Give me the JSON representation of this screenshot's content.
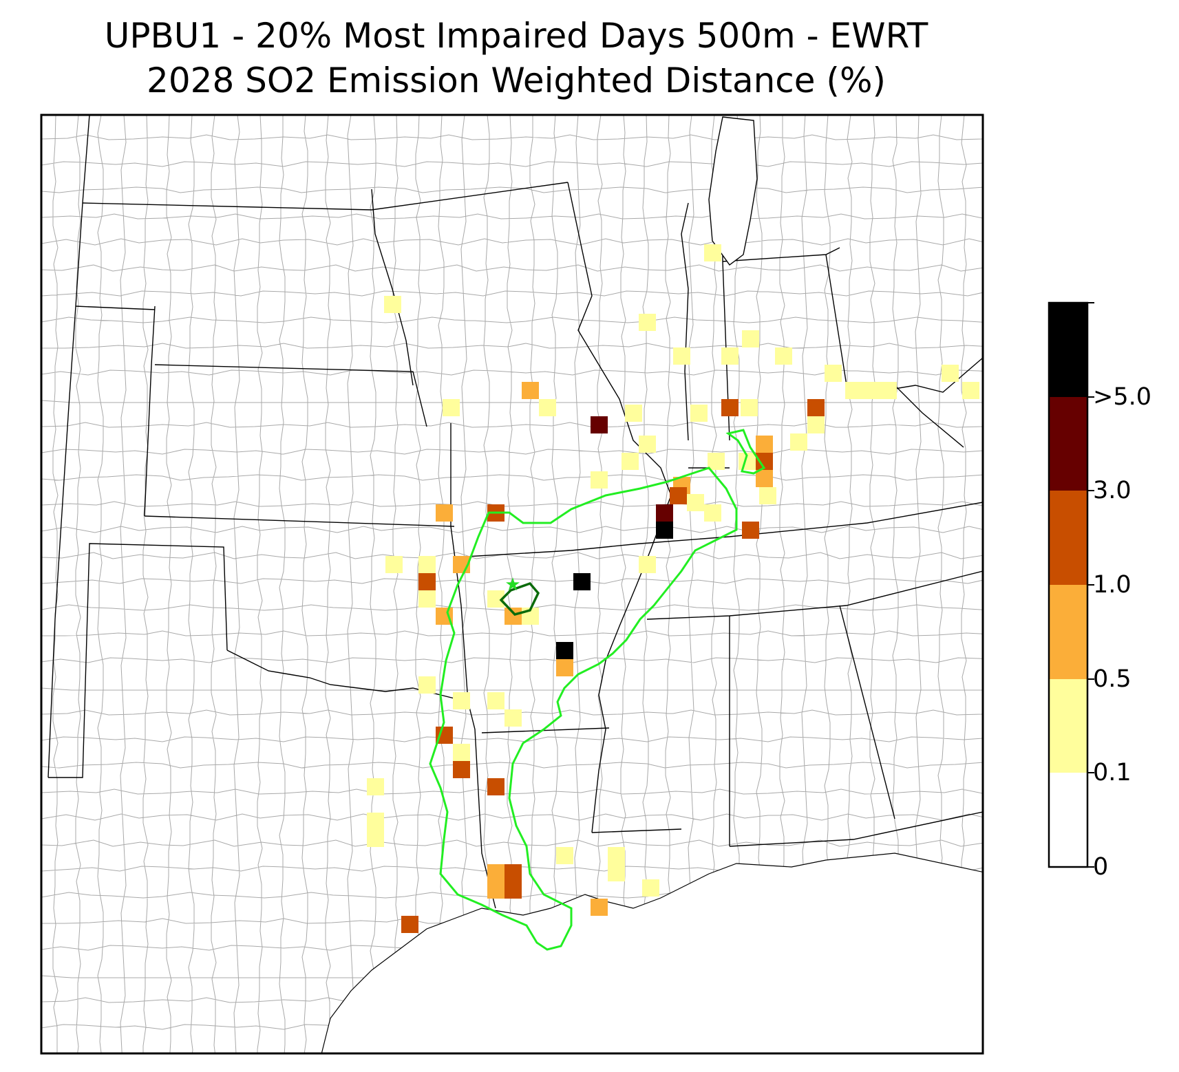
{
  "title_line1": "UPBU1 - 20% Most Impaired Days 500m - EWRT",
  "title_line2": "2028 SO2 Emission Weighted Distance (%)",
  "colorbar": {
    "labels": [
      ">5.0",
      "3.0",
      "1.0",
      "0.5",
      "0.1",
      "0"
    ],
    "colors": [
      "#000000",
      "#660000",
      "#c84e00",
      "#fbae39",
      "#fffe9c",
      "#ffffff"
    ],
    "bin_order_top_to_bottom": [
      "> 5.0",
      "3.0 - 5.0",
      "1.0 - 3.0",
      "0.5 - 1.0",
      "0.1 - 0.5",
      "0 - 0.1"
    ]
  },
  "map": {
    "region": "South-central United States (county boundaries)",
    "class_i_area_marker": "green-star",
    "contour_colors": {
      "outer": "#22ee22",
      "inner": "#0b6b0b"
    }
  }
}
